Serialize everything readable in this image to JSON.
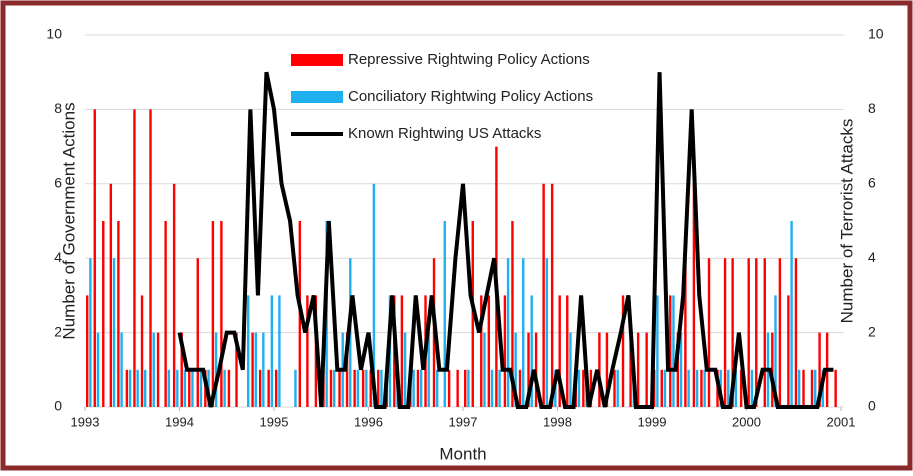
{
  "chart_data": {
    "type": "bar",
    "x_label": "Month",
    "y_label": "Number of Government Actions",
    "y2_label": "Number of Terrorist Attacks",
    "x": [
      1993,
      1993.08,
      1993.17,
      1993.25,
      1993.33,
      1993.42,
      1993.5,
      1993.58,
      1993.67,
      1993.75,
      1993.83,
      1993.92,
      1994,
      1994.08,
      1994.17,
      1994.25,
      1994.33,
      1994.42,
      1994.5,
      1994.58,
      1994.67,
      1994.75,
      1994.83,
      1994.92,
      1995,
      1995.08,
      1995.17,
      1995.25,
      1995.33,
      1995.42,
      1995.5,
      1995.58,
      1995.67,
      1995.75,
      1995.83,
      1995.92,
      1996,
      1996.08,
      1996.17,
      1996.25,
      1996.33,
      1996.42,
      1996.5,
      1996.58,
      1996.67,
      1996.75,
      1996.83,
      1996.92,
      1997,
      1997.08,
      1997.17,
      1997.25,
      1997.33,
      1997.42,
      1997.5,
      1997.58,
      1997.67,
      1997.75,
      1997.83,
      1997.92,
      1998,
      1998.08,
      1998.17,
      1998.25,
      1998.33,
      1998.42,
      1998.5,
      1998.58,
      1998.67,
      1998.75,
      1998.83,
      1998.92,
      1999,
      1999.08,
      1999.17,
      1999.25,
      1999.33,
      1999.42,
      1999.5,
      1999.58,
      1999.67,
      1999.75,
      1999.83,
      1999.92,
      2000,
      2000.08,
      2000.17,
      2000.25,
      2000.33,
      2000.42,
      2000.5,
      2000.58,
      2000.67,
      2000.75,
      2000.83,
      2000.92
    ],
    "xlim": [
      1993,
      2001
    ],
    "xticks": [
      1993,
      1994,
      1995,
      1996,
      1997,
      1998,
      1999,
      2000,
      2001
    ],
    "ylim": [
      0,
      10
    ],
    "yticks": [
      0,
      2,
      4,
      6,
      8,
      10
    ],
    "y2lim": [
      0,
      10
    ],
    "y2ticks": [
      0,
      2,
      4,
      6,
      8,
      10
    ],
    "grid": true,
    "series": [
      {
        "name": "Repressive Rightwing Policy Actions",
        "color": "#ff0000",
        "type": "bar",
        "values": [
          3,
          8,
          5,
          6,
          5,
          1,
          8,
          3,
          8,
          2,
          5,
          6,
          2,
          1,
          4,
          1,
          5,
          5,
          1,
          2,
          0,
          2,
          1,
          1,
          1,
          0,
          0,
          5,
          3,
          3,
          1,
          1,
          1,
          2,
          1,
          1,
          1,
          1,
          1,
          3,
          3,
          1,
          1,
          3,
          4,
          0,
          1,
          1,
          1,
          5,
          3,
          3,
          7,
          3,
          5,
          1,
          2,
          2,
          6,
          6,
          3,
          3,
          1,
          1,
          1,
          2,
          2,
          1,
          3,
          2,
          2,
          2,
          1,
          1,
          3,
          2,
          4,
          6,
          1,
          4,
          1,
          4,
          4,
          1,
          4,
          4,
          4,
          2,
          4,
          3,
          4,
          1,
          1,
          2,
          2,
          1
        ]
      },
      {
        "name": "Conciliatory Rightwing Policy Actions",
        "color": "#1fb0f0",
        "type": "bar",
        "values": [
          4,
          2,
          0,
          4,
          2,
          1,
          1,
          1,
          2,
          0,
          1,
          1,
          1,
          1,
          1,
          1,
          2,
          1,
          0,
          0,
          3,
          2,
          2,
          3,
          3,
          0,
          1,
          0,
          0,
          0,
          5,
          1,
          2,
          4,
          1,
          1,
          6,
          1,
          3,
          1,
          2,
          1,
          1,
          2,
          1,
          5,
          0,
          0,
          1,
          0,
          2,
          1,
          1,
          4,
          2,
          4,
          3,
          0,
          4,
          1,
          0,
          2,
          1,
          1,
          0,
          0,
          0,
          1,
          0,
          1,
          0,
          0,
          3,
          1,
          3,
          2,
          1,
          1,
          1,
          0,
          1,
          1,
          1,
          0,
          1,
          0,
          2,
          3,
          0,
          5,
          1,
          0,
          1,
          1,
          0,
          0
        ]
      },
      {
        "name": "Known Rightwing US Attacks",
        "color": "#000000",
        "type": "line",
        "axis": "y2",
        "values": [
          null,
          null,
          null,
          null,
          null,
          null,
          null,
          null,
          null,
          null,
          null,
          null,
          2,
          1,
          1,
          1,
          0,
          1,
          2,
          2,
          1,
          8,
          3,
          9,
          8,
          6,
          5,
          3,
          2,
          3,
          0,
          5,
          1,
          1,
          3,
          1,
          2,
          0,
          0,
          3,
          0,
          0,
          3,
          1,
          3,
          1,
          1,
          4,
          6,
          3,
          2,
          3,
          4,
          1,
          1,
          0,
          0,
          1,
          0,
          0,
          1,
          0,
          0,
          3,
          0,
          1,
          0,
          1,
          2,
          3,
          0,
          0,
          0,
          9,
          1,
          1,
          3,
          8,
          3,
          1,
          1,
          0,
          0,
          2,
          0,
          0,
          1,
          1,
          0,
          0,
          0,
          0,
          0,
          0,
          1,
          1
        ]
      }
    ]
  }
}
